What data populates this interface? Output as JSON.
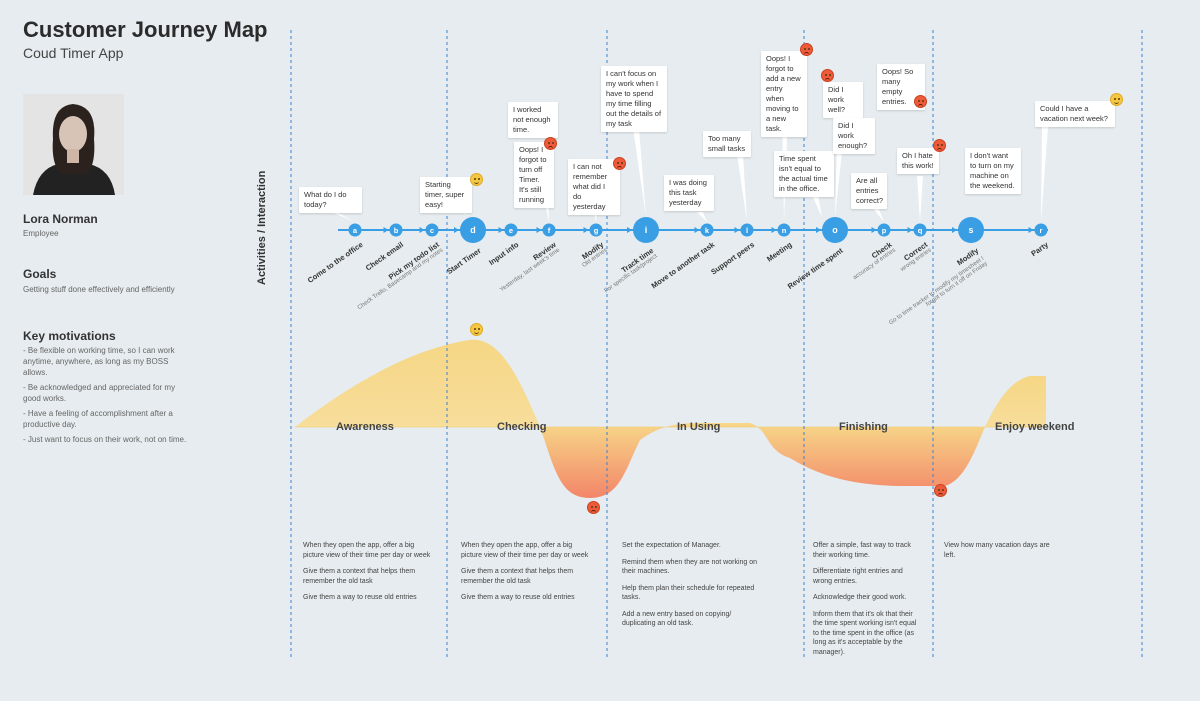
{
  "header": {
    "title": "Customer Journey Map",
    "subtitle": "Coud Timer App"
  },
  "persona": {
    "name": "Lora Norman",
    "role": "Employee",
    "goals_heading": "Goals",
    "goals_text": "Getting stuff done effectively and efficiently",
    "motivations_heading": "Key motivations",
    "motivations": [
      "- Be flexible on working time, so I can work anytime, anywhere, as long as my BOSS allows.",
      "- Be acknowledged and appreciated for my good works.",
      "- Have a feeling of accomplishment after  a productive day.",
      "- Just want to focus on their work, not on time."
    ]
  },
  "axis_label": "Activities / Interaction",
  "steps": [
    {
      "id": "a",
      "label": "Come to the office",
      "sub": ""
    },
    {
      "id": "b",
      "label": "Check email",
      "sub": ""
    },
    {
      "id": "c",
      "label": "Pick my todo list",
      "sub": "Check Trello, Basecamp and my notes"
    },
    {
      "id": "d",
      "label": "Start Timer",
      "sub": ""
    },
    {
      "id": "e",
      "label": "Input info",
      "sub": ""
    },
    {
      "id": "f",
      "label": "Review",
      "sub": "Yesterday, last week's time"
    },
    {
      "id": "g",
      "label": "Modify",
      "sub": "Old entries"
    },
    {
      "id": "i",
      "label": "Track time",
      "sub": "For specific task/project"
    },
    {
      "id": "k",
      "label": "Move to another task",
      "sub": ""
    },
    {
      "id": "l",
      "label": "Support peers",
      "sub": ""
    },
    {
      "id": "n",
      "label": "Meeting",
      "sub": ""
    },
    {
      "id": "o",
      "label": "Review time spent",
      "sub": ""
    },
    {
      "id": "p",
      "label": "Check",
      "sub": "accuracy of entries"
    },
    {
      "id": "q",
      "label": "Correct",
      "sub": "wrong entries"
    },
    {
      "id": "s",
      "label": "Modify",
      "sub": "Go to time tracker to modify my timesheet I forgot to turn it off on Friday"
    },
    {
      "id": "r",
      "label": "Party",
      "sub": ""
    }
  ],
  "bubbles": [
    {
      "text": "What do I do today?",
      "mood": ""
    },
    {
      "text": "Starting timer, super easy!",
      "mood": "happy"
    },
    {
      "text": "I worked not enough time.",
      "mood": ""
    },
    {
      "text": "Oops! I forgot to turn off Timer. It's still running",
      "mood": "sad"
    },
    {
      "text": "I can not remember what did I do yesterday",
      "mood": "sad"
    },
    {
      "text": "I can't focus on my work when I have to spend my time filling out the details of my task",
      "mood": ""
    },
    {
      "text": "I was doing this task yesterday",
      "mood": ""
    },
    {
      "text": "Too many small tasks",
      "mood": ""
    },
    {
      "text": "Oops! I forgot to add a new entry when moving to a new task.",
      "mood": "sad"
    },
    {
      "text": "Time spent isn't equal to the actual time in the office.",
      "mood": ""
    },
    {
      "text": "Did I work well?",
      "mood": "sad"
    },
    {
      "text": "Did I work enough?",
      "mood": ""
    },
    {
      "text": "Are all entries correct?",
      "mood": ""
    },
    {
      "text": "Oops! So many empty entries.",
      "mood": "sad"
    },
    {
      "text": "Oh I hate this work!",
      "mood": "sad"
    },
    {
      "text": "I don't want to turn on my machine on the weekend.",
      "mood": ""
    },
    {
      "text": "Could I have a vacation next week?",
      "mood": "happy"
    }
  ],
  "phases": [
    "Awareness",
    "Checking",
    "In Using",
    "Finishing",
    "Enjoy weekend"
  ],
  "recommendations": [
    [
      "When they open the app, offer a big picture view of their time per day or week",
      "Give them a context that helps them remember the old task",
      "Give them a way to reuse old entries"
    ],
    [
      "When they open the app, offer a big picture view of their time per day or week",
      "Give them a context that helps them remember the old task",
      "Give them a way to reuse old entries"
    ],
    [
      "Set the expectation of Manager.",
      "Remind them when they are not working on their machines.",
      "Help them plan their schedule for repeated tasks.",
      "Add a new entry based on copying/ duplicating an old task."
    ],
    [
      "Offer a simple, fast way to track their working time.",
      "Differentiate right entries and wrong entries.",
      "Acknowledge their good work.",
      "Inform them that it's ok that their the time spent working isn't equal to the time spent in the office (as long as it's acceptable by the manager)."
    ],
    [
      "View how many vacation days are left."
    ]
  ],
  "colors": {
    "node": "#3a9ee4",
    "dash": "#3a7fd6",
    "curve_top": "#f8d479",
    "curve_bottom": "#f47a5a",
    "background": "#e6ecef"
  }
}
